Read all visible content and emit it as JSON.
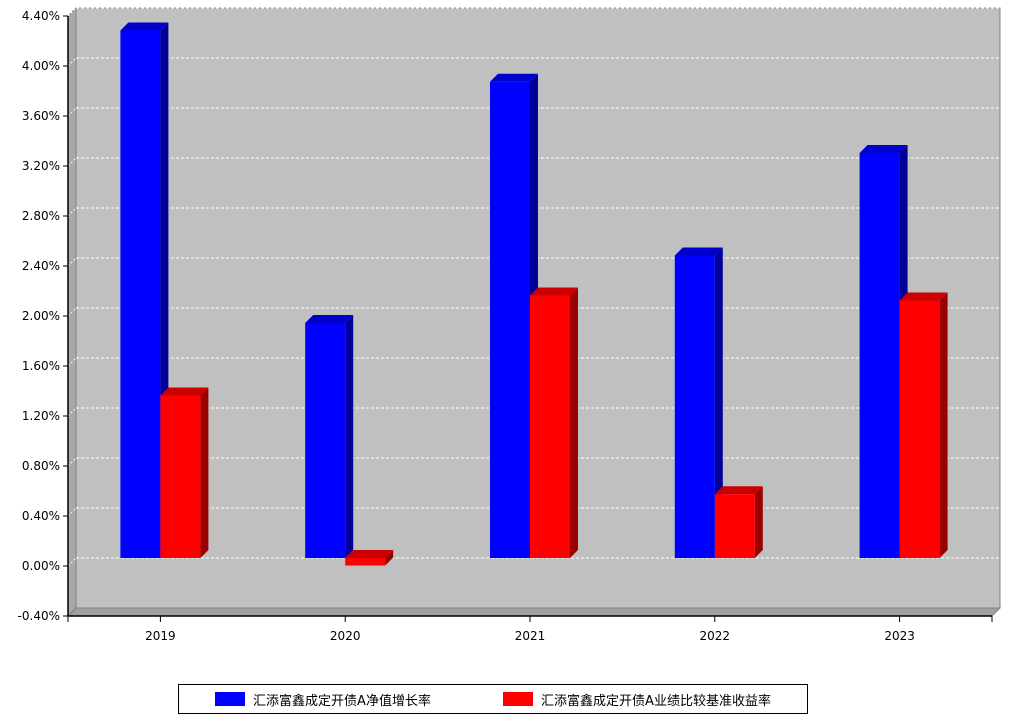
{
  "chart_data": {
    "type": "bar",
    "categories": [
      "2019",
      "2020",
      "2021",
      "2022",
      "2023"
    ],
    "series": [
      {
        "name": "汇添富鑫成定开债A净值增长率",
        "values": [
          4.22,
          1.88,
          3.81,
          2.42,
          3.24
        ],
        "color": "#0000ff"
      },
      {
        "name": "汇添富鑫成定开债A业绩比较基准收益率",
        "values": [
          1.3,
          -0.06,
          2.1,
          0.51,
          2.06
        ],
        "color": "#ff0000"
      }
    ],
    "yticks": [
      "-0.40%",
      "0.00%",
      "0.40%",
      "0.80%",
      "1.20%",
      "1.60%",
      "2.00%",
      "2.40%",
      "2.80%",
      "3.20%",
      "3.60%",
      "4.00%",
      "4.40%"
    ],
    "ylim": [
      -0.4,
      4.4
    ],
    "grid": true,
    "legend_position": "bottom",
    "plot_background": "#c0c0c0"
  }
}
